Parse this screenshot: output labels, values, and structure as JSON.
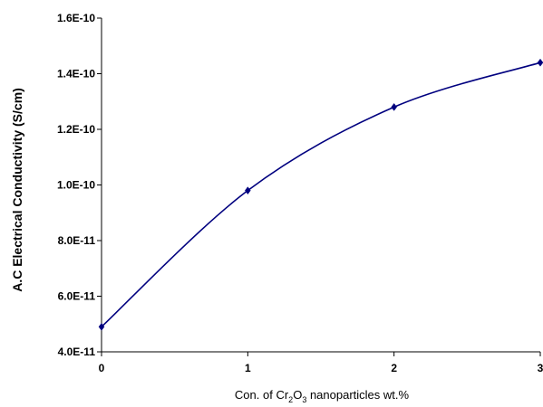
{
  "chart_data": {
    "type": "line",
    "title": "",
    "xlabel": {
      "prefix": "Con. of Cr",
      "sub1": "2",
      "mid": "O",
      "sub2": "3",
      "suffix": " nanoparticles wt.%"
    },
    "ylabel": "A.C Electrical Conductivity (S/cm)",
    "xlim": [
      0,
      3
    ],
    "ylim": [
      4e-11,
      1.6e-10
    ],
    "x_ticks": [
      0,
      1,
      2,
      3
    ],
    "x_tick_labels": [
      "0",
      "1",
      "2",
      "3"
    ],
    "y_ticks": [
      4e-11,
      6e-11,
      8e-11,
      1e-10,
      1.2e-10,
      1.4e-10,
      1.6e-10
    ],
    "y_tick_labels": [
      "4.0E-11",
      "6.0E-11",
      "8.0E-11",
      "1.0E-10",
      "1.2E-10",
      "1.4E-10",
      "1.6E-10"
    ],
    "grid": false,
    "smooth": true,
    "marker": "diamond",
    "series_color": "#00007f",
    "series": [
      {
        "x": [
          0,
          1,
          2,
          3
        ],
        "values": [
          4.9e-11,
          9.8e-11,
          1.28e-10,
          1.44e-10
        ]
      }
    ]
  }
}
